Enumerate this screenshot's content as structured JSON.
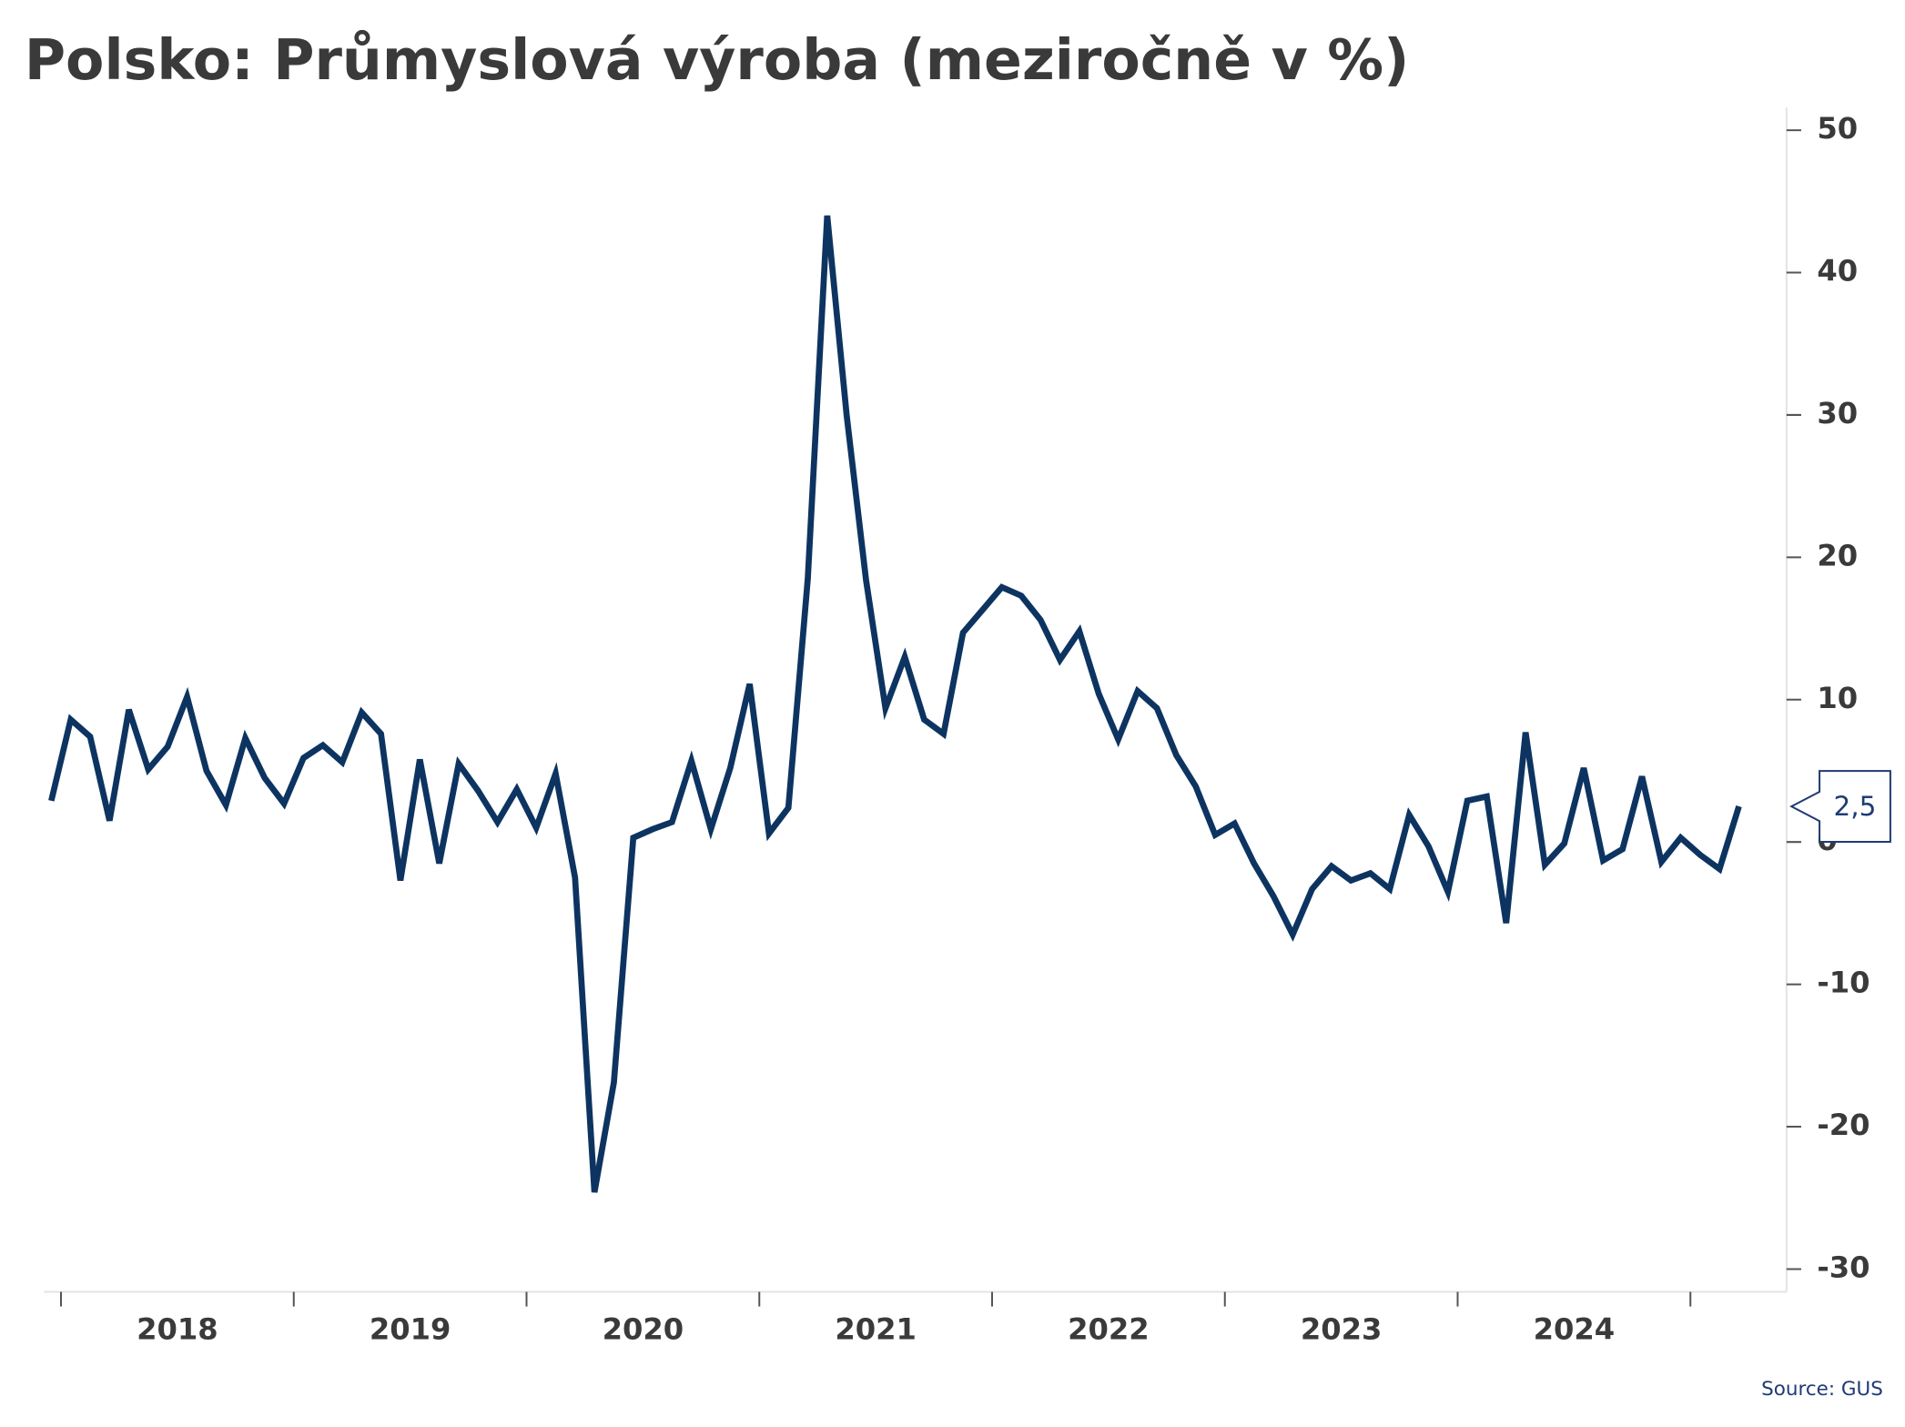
{
  "chart_data": {
    "type": "line",
    "title": "Polsko: Průmyslová výroba (meziročně v %)",
    "source": "Source: GUS",
    "categories": [
      null,
      "2018",
      "2018",
      "2018",
      "2018",
      "2018",
      "2018",
      "2018",
      "2018",
      "2018",
      "2018",
      "2018",
      "2018",
      "2019",
      "2019",
      "2019",
      "2019",
      "2019",
      "2019",
      "2019",
      "2019",
      "2019",
      "2019",
      "2019",
      "2019",
      "2020",
      "2020",
      "2020",
      "2020",
      "2020",
      "2020",
      "2020",
      "2020",
      "2020",
      "2020",
      "2020",
      "2020",
      "2021",
      "2021",
      "2021",
      "2021",
      "2021",
      "2021",
      "2021",
      "2021",
      "2021",
      "2021",
      "2021",
      "2021",
      "2022",
      "2022",
      "2022",
      "2022",
      "2022",
      "2022",
      "2022",
      "2022",
      "2022",
      "2022",
      "2022",
      "2022",
      "2023",
      "2023",
      "2023",
      "2023",
      "2023",
      "2023",
      "2023",
      "2023",
      "2023",
      "2023",
      "2023",
      "2023",
      "2024",
      "2024",
      "2024",
      "2024",
      "2024",
      "2024",
      "2024",
      "2024",
      "2024",
      "2024",
      "2024",
      "2024",
      null,
      null,
      null
    ],
    "values": [
      2.9,
      8.6,
      7.4,
      1.5,
      9.3,
      5.1,
      6.7,
      10.2,
      5.0,
      2.6,
      7.3,
      4.5,
      2.7,
      5.9,
      6.8,
      5.6,
      9.1,
      7.6,
      -2.7,
      5.8,
      -1.5,
      5.5,
      3.6,
      1.4,
      3.7,
      1.0,
      4.8,
      -2.5,
      -24.6,
      -16.9,
      0.3,
      0.9,
      1.4,
      5.7,
      0.9,
      5.2,
      11.1,
      0.6,
      2.4,
      18.5,
      44.0,
      30.0,
      18.4,
      9.4,
      13.0,
      8.6,
      7.6,
      14.7,
      16.3,
      17.9,
      17.3,
      15.6,
      12.8,
      14.8,
      10.4,
      7.2,
      10.6,
      9.4,
      6.1,
      3.9,
      0.5,
      1.3,
      -1.5,
      -3.8,
      -6.5,
      -3.3,
      -1.7,
      -2.7,
      -2.2,
      -3.3,
      1.9,
      -0.3,
      -3.5,
      2.9,
      3.2,
      -5.7,
      7.7,
      -1.6,
      -0.1,
      5.2,
      -1.3,
      -0.5,
      4.6,
      -1.4,
      0.3,
      -0.9,
      -1.9,
      2.5
    ],
    "value_labels": [
      null,
      null,
      null,
      null,
      null,
      null,
      null,
      null,
      null,
      null,
      null,
      null,
      null,
      null,
      null,
      null,
      null,
      null,
      null,
      null,
      null,
      null,
      null,
      null,
      null,
      null,
      null,
      null,
      null,
      null,
      null,
      null,
      null,
      null,
      null,
      null,
      null,
      null,
      null,
      null,
      null,
      null,
      null,
      null,
      null,
      null,
      null,
      null,
      null,
      null,
      null,
      null,
      null,
      null,
      null,
      null,
      null,
      null,
      null,
      null,
      null,
      null,
      null,
      null,
      null,
      null,
      null,
      null,
      null,
      null,
      null,
      null,
      null,
      null,
      null,
      null,
      null,
      null,
      null,
      null,
      null,
      null,
      null,
      null,
      null,
      null,
      null,
      "2,5"
    ],
    "color": "#0d3461",
    "ylim": [
      -31.6,
      51.6
    ],
    "yticks": [
      -30,
      -20,
      -10,
      0,
      10,
      20,
      30,
      40,
      50
    ],
    "y_axis_side": "right",
    "grid": false
  }
}
